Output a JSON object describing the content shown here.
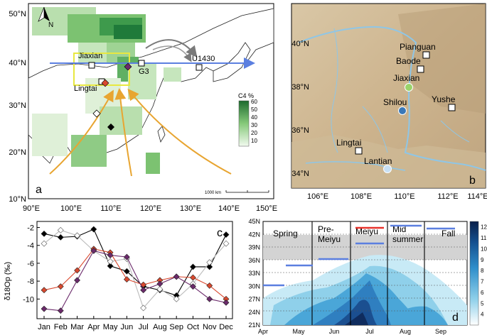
{
  "panel_a": {
    "panel_label": "a",
    "north_label": "N",
    "lat_ticks": [
      "50°N",
      "40°N",
      "30°N",
      "20°N",
      "10°N"
    ],
    "lon_ticks": [
      "90°E",
      "100°E",
      "110°E",
      "120°E",
      "130°E",
      "140°E",
      "150°E"
    ],
    "sites": [
      {
        "name": "Jiaxian"
      },
      {
        "name": "Lingtai"
      },
      {
        "name": "G3"
      },
      {
        "name": "U1430"
      }
    ],
    "legend_title": "C4 %",
    "legend_ticks": [
      "60",
      "50",
      "40",
      "30",
      "20",
      "10"
    ],
    "scale_bar_label": "1000 km",
    "colors": {
      "vegetation_dark": "#1f7a3a",
      "vegetation_light": "#e6f3df",
      "westerly_arrow": "#5b7fe0",
      "monsoon_arrow": "#e8a531",
      "winter_arrow": "#7a7a7a",
      "box": "#e8e840"
    }
  },
  "panel_b": {
    "panel_label": "b",
    "lat_ticks": [
      "40°N",
      "38°N",
      "36°N",
      "34°N"
    ],
    "lon_ticks": [
      "106°E",
      "108°E",
      "110°E",
      "112°E",
      "114°E"
    ],
    "sites": [
      {
        "name": "Pianguan",
        "marker": "square"
      },
      {
        "name": "Baode",
        "marker": "square"
      },
      {
        "name": "Jiaxian",
        "marker": "circle",
        "color": "#9ad36a"
      },
      {
        "name": "Shilou",
        "marker": "circle",
        "color": "#3a78b8"
      },
      {
        "name": "Yushe",
        "marker": "square"
      },
      {
        "name": "Lingtai",
        "marker": "square"
      },
      {
        "name": "Lantian",
        "marker": "circle",
        "color": "#c8e0f4"
      }
    ]
  },
  "panel_c": {
    "panel_label": "c",
    "chart_data": {
      "type": "line",
      "categories": [
        "Jan",
        "Feb",
        "Mar",
        "Apr",
        "May",
        "Jun",
        "Jul",
        "Aug",
        "Sep",
        "Oct",
        "Nov",
        "Dec"
      ],
      "ylabel": "δ18Op (‰)",
      "ylim": [
        -11.8,
        -1.8
      ],
      "yticks": [
        -2,
        -4,
        -6,
        -8,
        -10
      ],
      "series": [
        {
          "color": "#000000",
          "marker": "diamond",
          "values": [
            -2.7,
            -3.1,
            -3.0,
            -2.2,
            -6.3,
            -6.9,
            -8.6,
            -9.0,
            -9.6,
            -6.4,
            -6.4,
            -2.8
          ]
        },
        {
          "color": "#ffffff",
          "edge": "#555555",
          "marker": "diamond",
          "values": [
            -3.8,
            -2.3,
            -2.9,
            -4.6,
            -5.8,
            -5.5,
            -11.0,
            -8.9,
            -10.0,
            -8.3,
            -5.9,
            -3.8
          ]
        },
        {
          "color": "#d9492f",
          "marker": "diamond",
          "values": [
            -9.0,
            -8.6,
            -6.8,
            -4.4,
            -4.8,
            -7.8,
            -8.4,
            -7.9,
            -7.5,
            -7.6,
            -8.5,
            -10.0
          ]
        },
        {
          "color": "#6b2a6b",
          "marker": "diamond",
          "values": [
            -11.1,
            -11.3,
            -7.9,
            -4.6,
            -5.1,
            -5.3,
            -9.0,
            -8.3,
            -7.5,
            -8.6,
            -10.0,
            -10.4
          ]
        }
      ]
    }
  },
  "panel_d": {
    "panel_label": "d",
    "chart_data": {
      "type": "heatmap",
      "x_ticks": [
        "Apr",
        "May",
        "Jun",
        "Jul",
        "Aug",
        "Sep"
      ],
      "y_ticks": [
        "45N",
        "42N",
        "39N",
        "36N",
        "33N",
        "30N",
        "27N",
        "24N",
        "21N"
      ],
      "ylim": [
        21,
        45
      ],
      "seasons": [
        "Spring",
        "Pre-Meiyu",
        "Meiyu",
        "Mid summer",
        "Fall"
      ],
      "colorbar_ticks": [
        "12",
        "11",
        "10",
        "9",
        "8",
        "7",
        "6",
        "5",
        "4"
      ],
      "colorbar_range": [
        3,
        12.5
      ]
    }
  }
}
